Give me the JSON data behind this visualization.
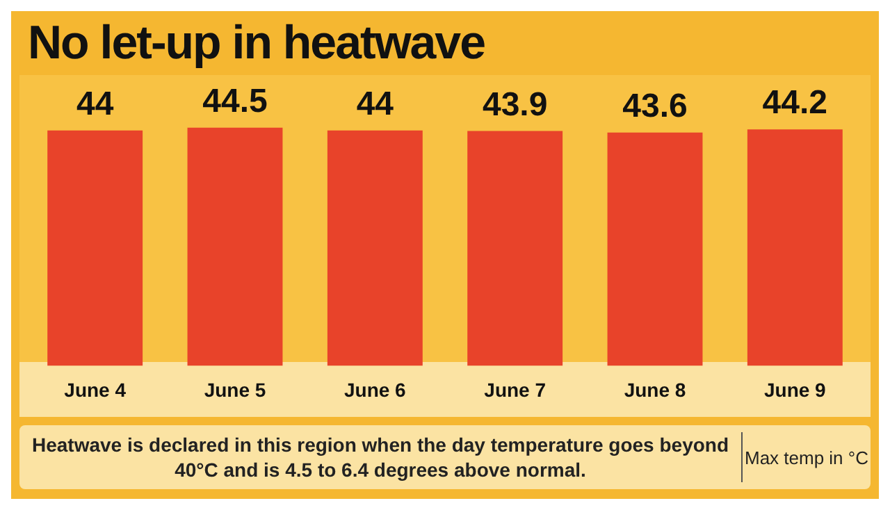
{
  "chart_data": {
    "type": "bar",
    "title": "No let-up in heatwave",
    "categories": [
      "June 4",
      "June 5",
      "June 6",
      "June 7",
      "June 8",
      "June 9"
    ],
    "values": [
      44,
      44.5,
      44,
      43.9,
      43.6,
      44.2
    ],
    "color": "#e8432a",
    "data_labels": true,
    "grid": false,
    "legend": false,
    "annotations": [
      "Heatwave is declared in this region when the day temperature goes beyond 40°C and is 4.5 to 6.4 degrees above normal.",
      "Max temp in °C"
    ]
  }
}
